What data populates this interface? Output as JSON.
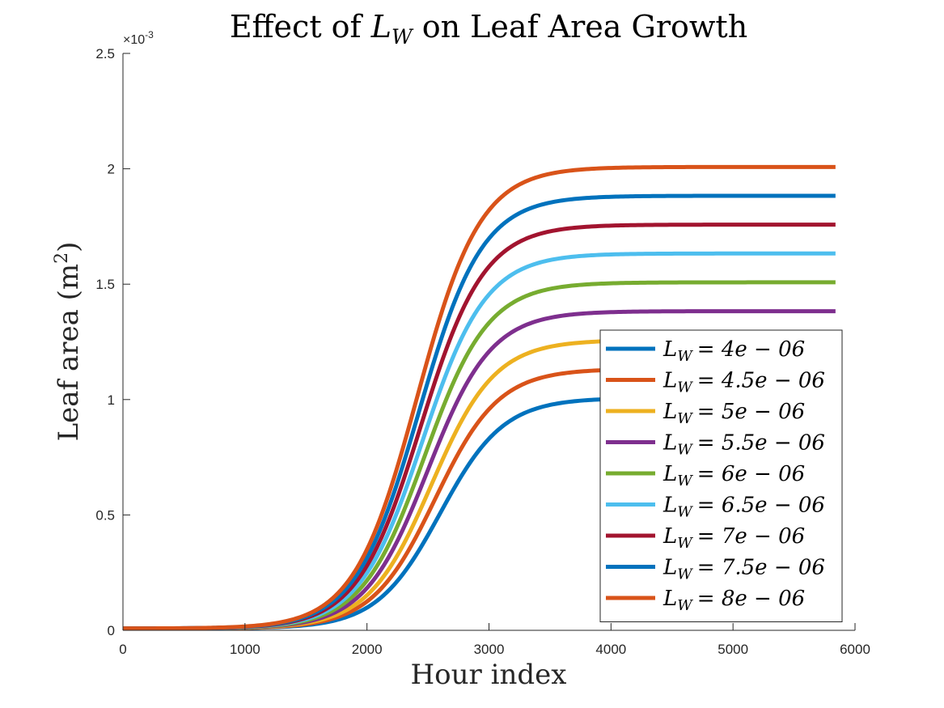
{
  "chart_data": {
    "type": "line",
    "title": {
      "prefix": "Effect of ",
      "symbol": "L",
      "subscript": "W",
      "suffix": " on Leaf Area Growth"
    },
    "xlabel": "Hour index",
    "ylabel": {
      "text": "Leaf area (m",
      "superscript": "2",
      "close": ")"
    },
    "y_exponent": {
      "base": "×10",
      "power": "-3"
    },
    "xlim": [
      0,
      6000
    ],
    "ylim": [
      0,
      2.5
    ],
    "x_ticks": [
      0,
      1000,
      2000,
      3000,
      4000,
      5000,
      6000
    ],
    "x_tick_labels": [
      "0",
      "1000",
      "2000",
      "3000",
      "4000",
      "5000",
      "6000"
    ],
    "y_ticks": [
      0,
      0.5,
      1,
      1.5,
      2,
      2.5
    ],
    "y_tick_labels": [
      "0",
      "0.5",
      "1",
      "1.5",
      "2",
      "2.5"
    ],
    "grid": false,
    "legend_placement": "bottom-right",
    "x_end": 5840,
    "series": [
      {
        "label_symbol": "L",
        "label_subscript": "W",
        "label_value": "= 4e − 06",
        "color": "#0072BD",
        "baseline": 0.008,
        "asymptote": 1.007,
        "midpoint": 2600,
        "scale": 260
      },
      {
        "label_symbol": "L",
        "label_subscript": "W",
        "label_value": "= 4.5e − 06",
        "color": "#D95319",
        "baseline": 0.008,
        "asymptote": 1.133,
        "midpoint": 2560,
        "scale": 260
      },
      {
        "label_symbol": "L",
        "label_subscript": "W",
        "label_value": "= 5e − 06",
        "color": "#EDB120",
        "baseline": 0.008,
        "asymptote": 1.258,
        "midpoint": 2530,
        "scale": 260
      },
      {
        "label_symbol": "L",
        "label_subscript": "W",
        "label_value": "= 5.5e − 06",
        "color": "#7E2F8E",
        "baseline": 0.008,
        "asymptote": 1.383,
        "midpoint": 2500,
        "scale": 260
      },
      {
        "label_symbol": "L",
        "label_subscript": "W",
        "label_value": "= 6e − 06",
        "color": "#77AC30",
        "baseline": 0.008,
        "asymptote": 1.508,
        "midpoint": 2475,
        "scale": 260
      },
      {
        "label_symbol": "L",
        "label_subscript": "W",
        "label_value": "= 6.5e − 06",
        "color": "#4DBEEE",
        "baseline": 0.008,
        "asymptote": 1.633,
        "midpoint": 2455,
        "scale": 260
      },
      {
        "label_symbol": "L",
        "label_subscript": "W",
        "label_value": "= 7e − 06",
        "color": "#A2142F",
        "baseline": 0.008,
        "asymptote": 1.758,
        "midpoint": 2440,
        "scale": 260
      },
      {
        "label_symbol": "L",
        "label_subscript": "W",
        "label_value": "= 7.5e − 06",
        "color": "#0072BD",
        "baseline": 0.008,
        "asymptote": 1.883,
        "midpoint": 2425,
        "scale": 260
      },
      {
        "label_symbol": "L",
        "label_subscript": "W",
        "label_value": "= 8e − 06",
        "color": "#D95319",
        "baseline": 0.008,
        "asymptote": 2.008,
        "midpoint": 2410,
        "scale": 260
      }
    ]
  }
}
